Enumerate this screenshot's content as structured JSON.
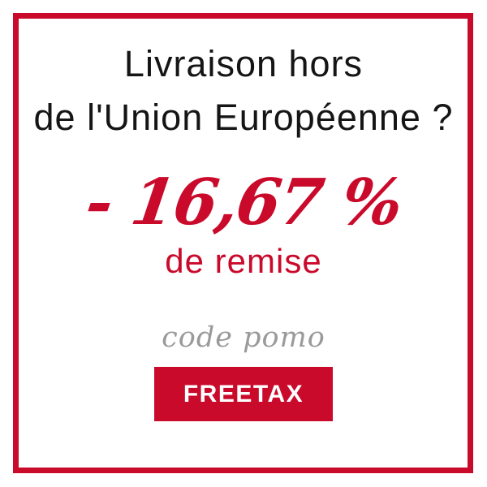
{
  "colors": {
    "accent": "#CA0A2B",
    "heading_text": "#151515",
    "script_text": "#9A9A9A",
    "background": "#FFFFFF",
    "button_text": "#FFFFFF"
  },
  "banner": {
    "heading_line1": "Livraison hors",
    "heading_line2": "de l'Union Européenne ?",
    "discount_value": "- 16,67 %",
    "discount_label": "de remise",
    "promo_code_label": "code pomo",
    "promo_code_button": "FREETAX"
  }
}
